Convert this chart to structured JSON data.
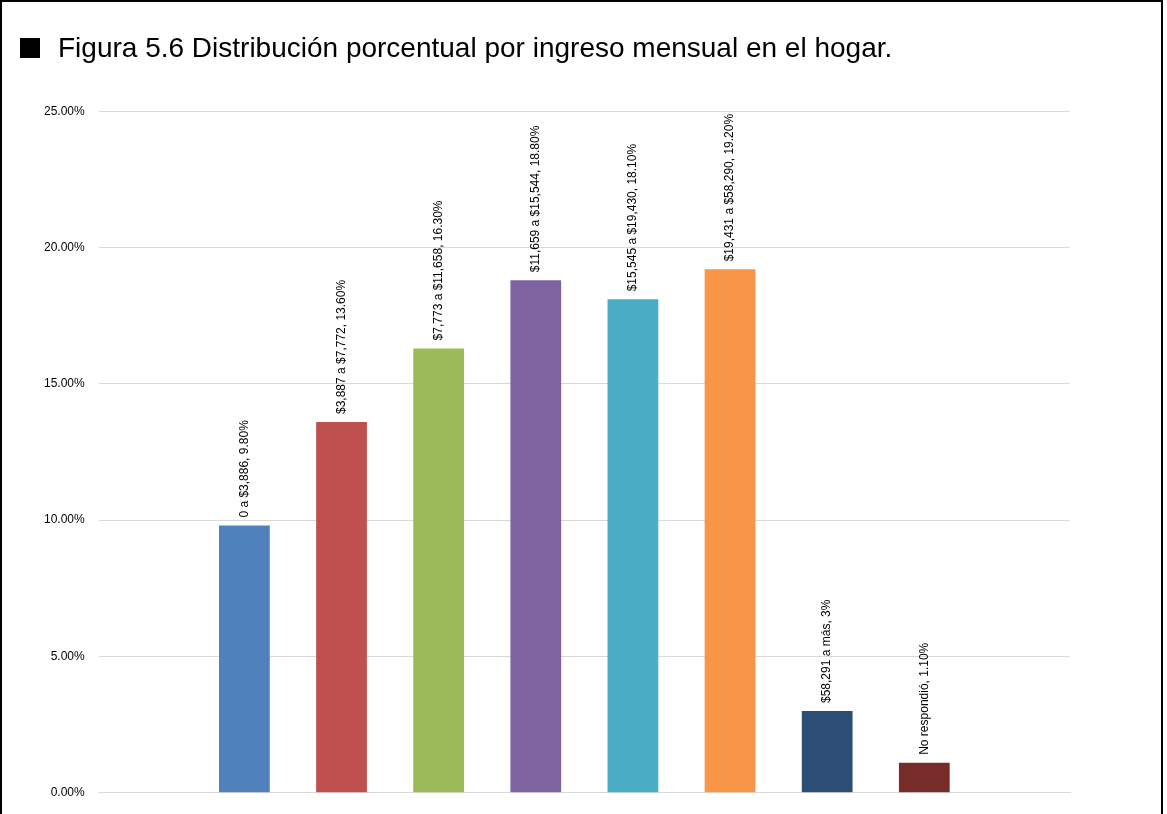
{
  "chart_data": {
    "type": "bar",
    "title": "Figura 5.6 Distribución porcentual por ingreso mensual en el hogar.",
    "categories": [
      null,
      null,
      null,
      null,
      null,
      null,
      null,
      null,
      null,
      null
    ],
    "values": [
      null,
      9.8,
      13.6,
      16.3,
      18.8,
      18.1,
      19.2,
      3,
      1.1,
      null
    ],
    "colors": [
      "#4f81bd",
      "#4f81bd",
      "#c0504d",
      "#9bbb59",
      "#8064a2",
      "#4bacc6",
      "#f79646",
      "#2c4d75",
      "#772c2a",
      "#772c2a"
    ],
    "value_labels": [
      null,
      "0 a $3,886, 9.80%",
      "$3,887 a $7,772, 13.60%",
      "$7,773 a $11,658, 16.30%",
      "$11,659 a $15,544, 18.80%",
      "$15,545 a $19,430, 18.10%",
      "$19,431 a $58,290, 19.20%",
      "$58,291 a más, 3%",
      "No respondió, 1.10%",
      null
    ],
    "ylim": [
      0,
      25
    ],
    "yticks": [
      {
        "value": 0,
        "label": "0.00%"
      },
      {
        "value": 5,
        "label": "5.00%"
      },
      {
        "value": 10,
        "label": "10.00%"
      },
      {
        "value": 15,
        "label": "15.00%"
      },
      {
        "value": 20,
        "label": "20.00%"
      },
      {
        "value": 25,
        "label": "25.00%"
      }
    ],
    "grid": "y",
    "legend": false,
    "tick_labels": "y"
  }
}
